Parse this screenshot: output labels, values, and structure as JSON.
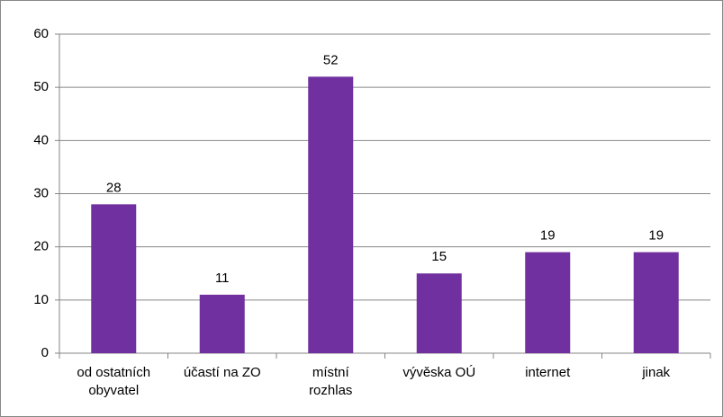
{
  "chart_data": {
    "type": "bar",
    "categories": [
      "od ostatních\nobyvatel",
      "účastí na ZO",
      "místní\nrozhlas",
      "vývěska OÚ",
      "internet",
      "jinak"
    ],
    "values": [
      28,
      11,
      52,
      15,
      19,
      19
    ],
    "color": "#7030a0",
    "ylim": [
      0,
      60
    ],
    "yticks": [
      0,
      10,
      20,
      30,
      40,
      50,
      60
    ],
    "grid": true
  }
}
